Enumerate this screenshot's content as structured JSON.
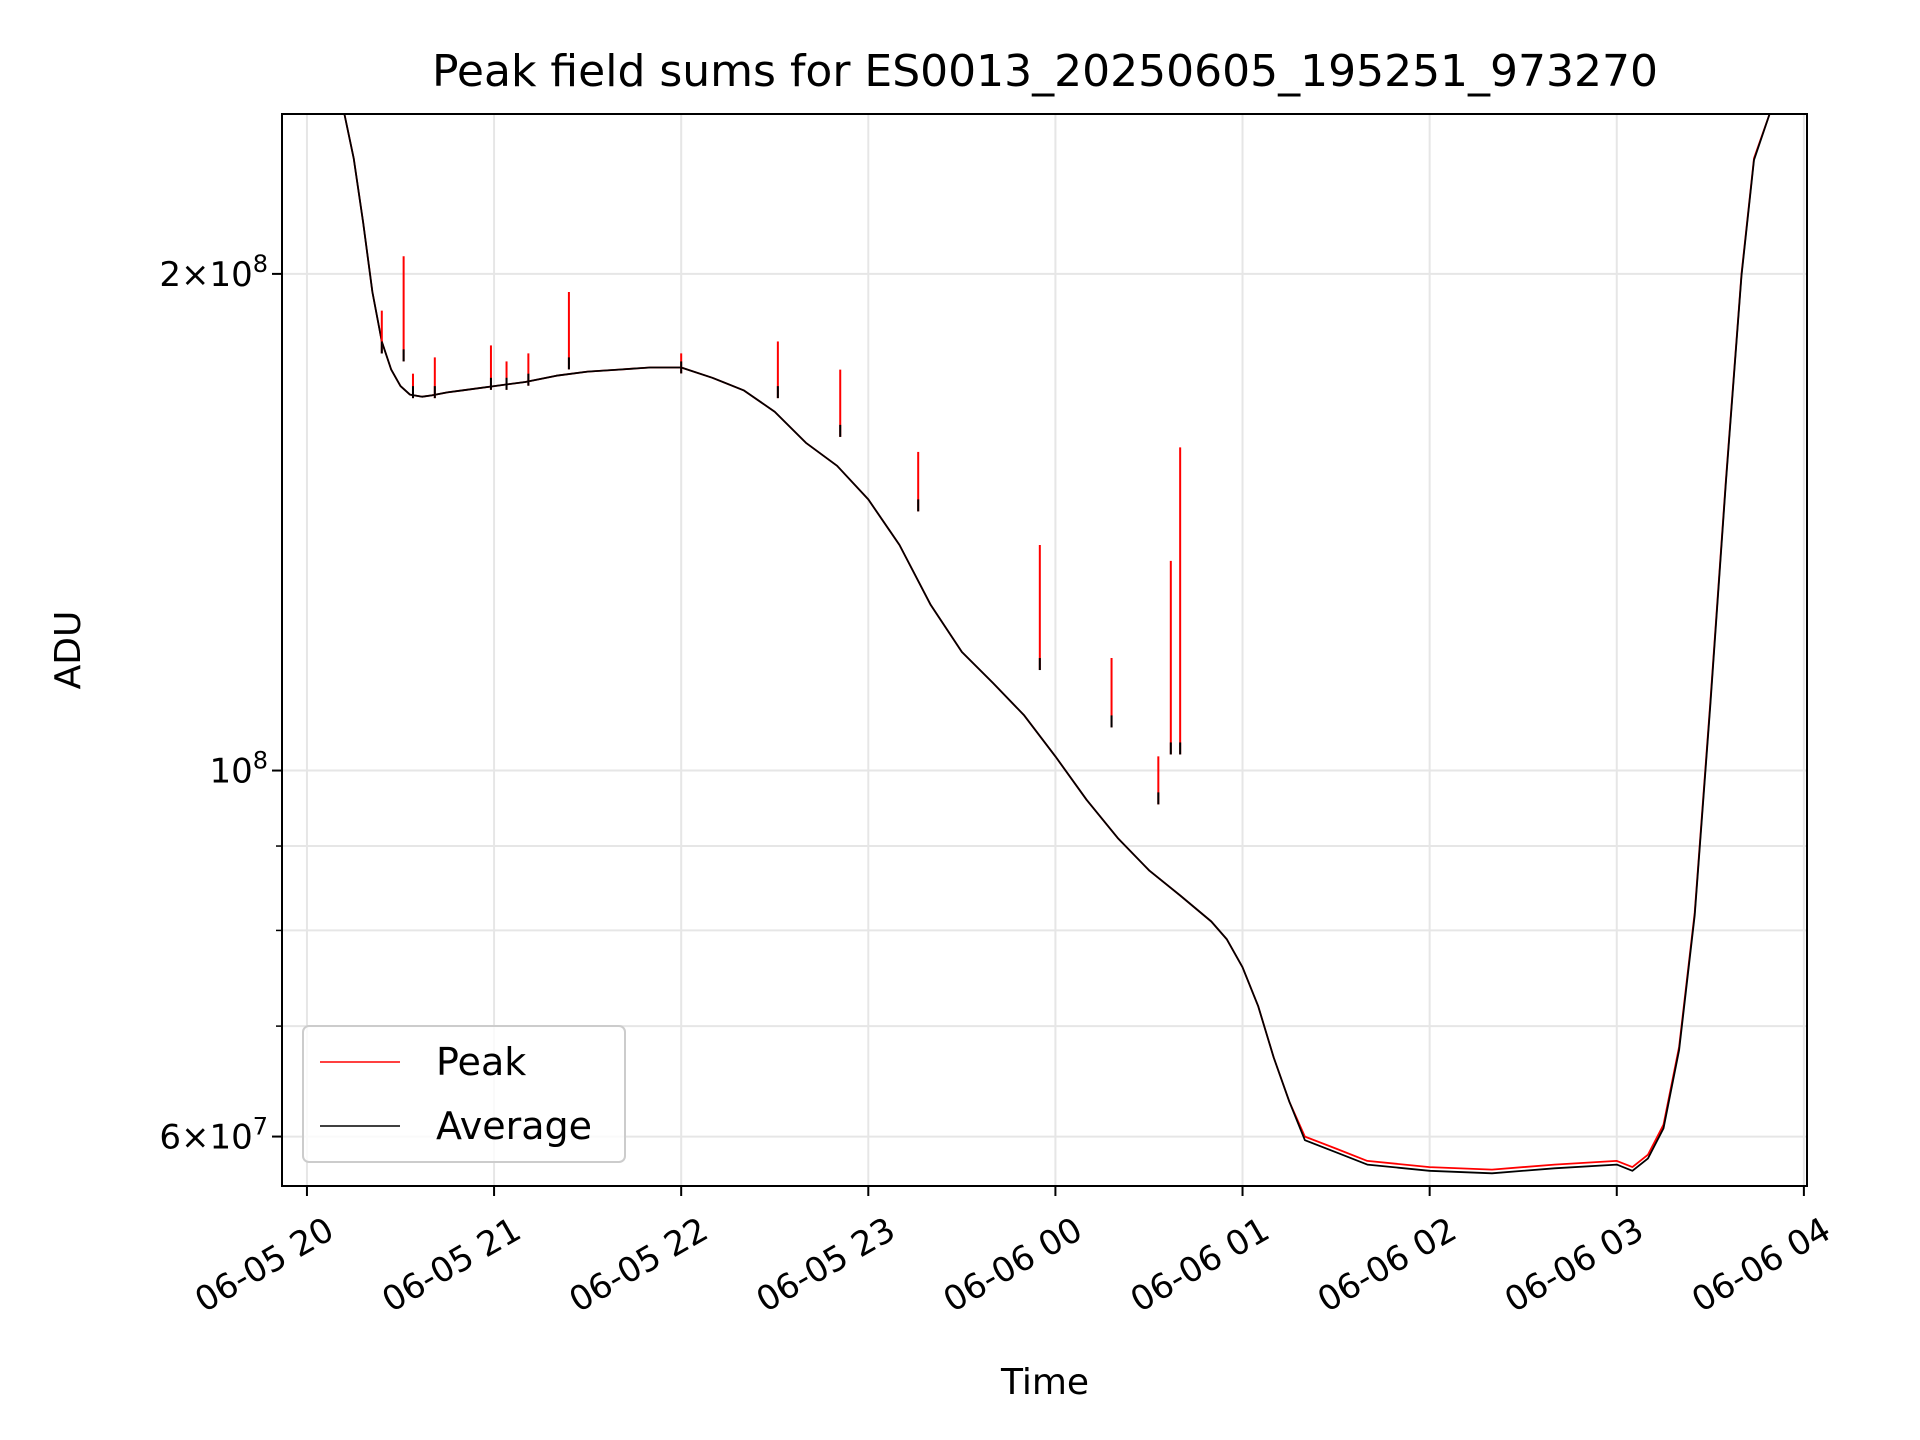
{
  "chart_data": {
    "type": "line",
    "title": "Peak field sums for ES0013_20250605_195251_973270",
    "xlabel": "Time",
    "ylabel": "ADU",
    "yscale": "log",
    "grid": true,
    "legend_position": "bottom-left",
    "xlim": [
      "2025-06-05 19:52",
      "2025-06-06 04:01"
    ],
    "ylim": [
      56000000,
      250000000
    ],
    "x_ticks": [
      "06-05 20",
      "06-05 21",
      "06-05 22",
      "06-05 23",
      "06-06 00",
      "06-06 01",
      "06-06 02",
      "06-06 03",
      "06-06 04"
    ],
    "y_ticks": [
      {
        "value": 60000000,
        "label_base": "6×10",
        "label_exp": "7"
      },
      {
        "value": 100000000,
        "label_base": "10",
        "label_exp": "8"
      },
      {
        "value": 200000000,
        "label_base": "2×10",
        "label_exp": "8"
      }
    ],
    "series": [
      {
        "name": "Peak",
        "color": "#ff0000",
        "x": [
          "2025-06-05 20:12",
          "2025-06-05 20:15",
          "2025-06-05 20:18",
          "2025-06-05 20:21",
          "2025-06-05 20:24",
          "2025-06-05 20:27",
          "2025-06-05 20:30",
          "2025-06-05 20:33",
          "2025-06-05 20:37",
          "2025-06-05 20:40",
          "2025-06-05 20:45",
          "2025-06-05 20:50",
          "2025-06-05 21:00",
          "2025-06-05 21:10",
          "2025-06-05 21:20",
          "2025-06-05 21:30",
          "2025-06-05 21:40",
          "2025-06-05 21:50",
          "2025-06-05 22:00",
          "2025-06-05 22:10",
          "2025-06-05 22:20",
          "2025-06-05 22:30",
          "2025-06-05 22:40",
          "2025-06-05 22:50",
          "2025-06-05 23:00",
          "2025-06-05 23:10",
          "2025-06-05 23:20",
          "2025-06-05 23:30",
          "2025-06-05 23:40",
          "2025-06-05 23:50",
          "2025-06-06 00:00",
          "2025-06-06 00:10",
          "2025-06-06 00:20",
          "2025-06-06 00:30",
          "2025-06-06 00:40",
          "2025-06-06 00:50",
          "2025-06-06 00:55",
          "2025-06-06 01:00",
          "2025-06-06 01:05",
          "2025-06-06 01:10",
          "2025-06-06 01:15",
          "2025-06-06 01:20",
          "2025-06-06 01:30",
          "2025-06-06 01:40",
          "2025-06-06 02:00",
          "2025-06-06 02:20",
          "2025-06-06 02:40",
          "2025-06-06 03:00",
          "2025-06-06 03:05",
          "2025-06-06 03:10",
          "2025-06-06 03:15",
          "2025-06-06 03:20",
          "2025-06-06 03:25",
          "2025-06-06 03:30",
          "2025-06-06 03:35",
          "2025-06-06 03:40",
          "2025-06-06 03:44",
          "2025-06-06 03:49"
        ],
        "y": [
          250000000,
          235000000,
          215000000,
          195000000,
          182000000,
          175000000,
          171000000,
          169000000,
          168500000,
          168800000,
          169500000,
          170000000,
          171000000,
          172000000,
          173500000,
          174500000,
          175000000,
          175500000,
          175500000,
          173000000,
          170000000,
          165000000,
          158000000,
          153000000,
          146000000,
          137000000,
          126000000,
          118000000,
          113000000,
          108000000,
          102000000,
          96000000,
          91000000,
          87000000,
          84000000,
          81000000,
          79000000,
          76000000,
          72000000,
          67000000,
          63000000,
          60000000,
          59000000,
          58000000,
          57500000,
          57300000,
          57700000,
          58000000,
          57500000,
          58500000,
          61000000,
          68000000,
          82000000,
          110000000,
          150000000,
          200000000,
          235000000,
          250000000
        ]
      },
      {
        "name": "Average",
        "color": "#000000",
        "x": [
          "2025-06-05 20:12",
          "2025-06-05 20:15",
          "2025-06-05 20:18",
          "2025-06-05 20:21",
          "2025-06-05 20:24",
          "2025-06-05 20:27",
          "2025-06-05 20:30",
          "2025-06-05 20:33",
          "2025-06-05 20:37",
          "2025-06-05 20:40",
          "2025-06-05 20:45",
          "2025-06-05 20:50",
          "2025-06-05 21:00",
          "2025-06-05 21:10",
          "2025-06-05 21:20",
          "2025-06-05 21:30",
          "2025-06-05 21:40",
          "2025-06-05 21:50",
          "2025-06-05 22:00",
          "2025-06-05 22:10",
          "2025-06-05 22:20",
          "2025-06-05 22:30",
          "2025-06-05 22:40",
          "2025-06-05 22:50",
          "2025-06-05 23:00",
          "2025-06-05 23:10",
          "2025-06-05 23:20",
          "2025-06-05 23:30",
          "2025-06-05 23:40",
          "2025-06-05 23:50",
          "2025-06-06 00:00",
          "2025-06-06 00:10",
          "2025-06-06 00:20",
          "2025-06-06 00:30",
          "2025-06-06 00:40",
          "2025-06-06 00:50",
          "2025-06-06 00:55",
          "2025-06-06 01:00",
          "2025-06-06 01:05",
          "2025-06-06 01:10",
          "2025-06-06 01:15",
          "2025-06-06 01:20",
          "2025-06-06 01:30",
          "2025-06-06 01:40",
          "2025-06-06 02:00",
          "2025-06-06 02:20",
          "2025-06-06 02:40",
          "2025-06-06 03:00",
          "2025-06-06 03:05",
          "2025-06-06 03:10",
          "2025-06-06 03:15",
          "2025-06-06 03:20",
          "2025-06-06 03:25",
          "2025-06-06 03:30",
          "2025-06-06 03:35",
          "2025-06-06 03:40",
          "2025-06-06 03:44",
          "2025-06-06 03:49"
        ],
        "y": [
          250000000,
          235000000,
          215000000,
          195000000,
          182000000,
          175000000,
          171000000,
          169000000,
          168500000,
          168800000,
          169500000,
          170000000,
          171000000,
          172000000,
          173500000,
          174500000,
          175000000,
          175500000,
          175500000,
          173000000,
          170000000,
          165000000,
          158000000,
          153000000,
          146000000,
          137000000,
          126000000,
          118000000,
          113000000,
          108000000,
          102000000,
          96000000,
          91000000,
          87000000,
          84000000,
          81000000,
          79000000,
          76000000,
          72000000,
          67000000,
          63000000,
          59700000,
          58700000,
          57700000,
          57200000,
          57000000,
          57400000,
          57700000,
          57200000,
          58200000,
          60700000,
          67700000,
          81700000,
          109500000,
          149500000,
          199500000,
          234500000,
          250000000
        ]
      }
    ],
    "peak_spikes": [
      {
        "x": "2025-06-05 20:24",
        "peak": 190000000,
        "average": 182000000
      },
      {
        "x": "2025-06-05 20:31",
        "peak": 205000000,
        "average": 180000000
      },
      {
        "x": "2025-06-05 20:34",
        "peak": 174000000,
        "average": 171000000
      },
      {
        "x": "2025-06-05 20:41",
        "peak": 178000000,
        "average": 171000000
      },
      {
        "x": "2025-06-05 20:59",
        "peak": 181000000,
        "average": 173000000
      },
      {
        "x": "2025-06-05 21:04",
        "peak": 177000000,
        "average": 173000000
      },
      {
        "x": "2025-06-05 21:11",
        "peak": 179000000,
        "average": 174000000
      },
      {
        "x": "2025-06-05 21:24",
        "peak": 195000000,
        "average": 178000000
      },
      {
        "x": "2025-06-05 22:00",
        "peak": 179000000,
        "average": 177000000
      },
      {
        "x": "2025-06-05 22:31",
        "peak": 182000000,
        "average": 171000000
      },
      {
        "x": "2025-06-05 22:51",
        "peak": 175000000,
        "average": 162000000
      },
      {
        "x": "2025-06-05 23:16",
        "peak": 156000000,
        "average": 146000000
      },
      {
        "x": "2025-06-05 23:55",
        "peak": 137000000,
        "average": 117000000
      },
      {
        "x": "2025-06-06 00:18",
        "peak": 117000000,
        "average": 108000000
      },
      {
        "x": "2025-06-06 00:33",
        "peak": 102000000,
        "average": 97000000
      },
      {
        "x": "2025-06-06 00:37",
        "peak": 134000000,
        "average": 104000000
      },
      {
        "x": "2025-06-06 00:40",
        "peak": 157000000,
        "average": 104000000
      }
    ],
    "legend": [
      {
        "label": "Peak",
        "color": "#ff0000"
      },
      {
        "label": "Average",
        "color": "#000000"
      }
    ]
  }
}
